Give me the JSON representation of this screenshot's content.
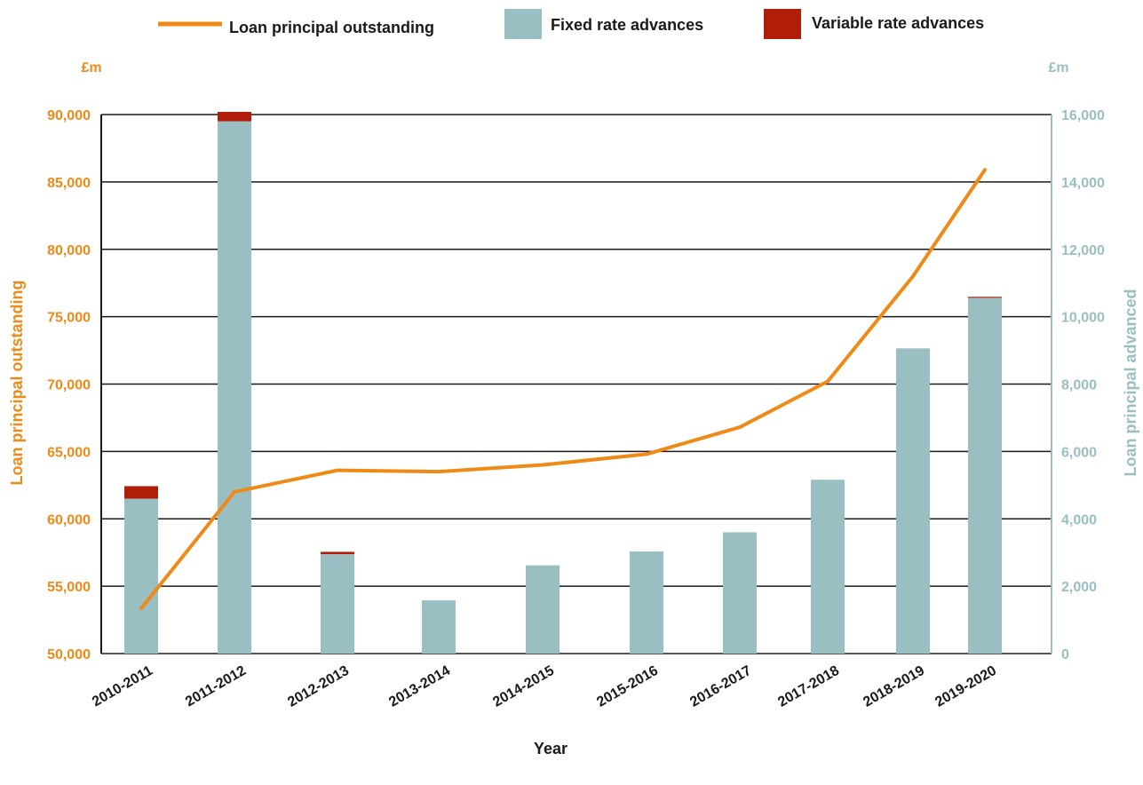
{
  "chart_data": {
    "type": "bar",
    "categories": [
      "2010-2011",
      "2011-2012",
      "2012-2013",
      "2013-2014",
      "2014-2015",
      "2015-2016",
      "2016-2017",
      "2017-2018",
      "2018-2019",
      "2019-2020"
    ],
    "series": [
      {
        "name": "Fixed rate advances",
        "type": "bar",
        "axis": "right",
        "stack": "advances",
        "color": "#99bfc2",
        "values": [
          4600,
          15800,
          2950,
          1580,
          2620,
          3030,
          3600,
          5160,
          9060,
          10560
        ]
      },
      {
        "name": "Variable rate advances",
        "type": "bar",
        "axis": "right",
        "stack": "advances",
        "color": "#b01e0a",
        "values": [
          370,
          280,
          70,
          0,
          0,
          0,
          0,
          0,
          0,
          30
        ]
      },
      {
        "name": "Loan principal outstanding",
        "type": "line",
        "axis": "left",
        "color": "#ef8a17",
        "values": [
          53350,
          62000,
          63600,
          63500,
          64000,
          64800,
          66800,
          70200,
          78000,
          85900
        ]
      }
    ],
    "left_axis": {
      "label": "Loan principal outstanding",
      "unit": "£m",
      "ylim": [
        50000,
        90000
      ],
      "ticks": [
        "50,000",
        "55,000",
        "60,000",
        "65,000",
        "70,000",
        "75,000",
        "80,000",
        "85,000",
        "90,000"
      ]
    },
    "right_axis": {
      "label": "Loan principal advanced",
      "unit": "£m",
      "ylim": [
        0,
        16000
      ],
      "ticks": [
        "0",
        "2,000",
        "4,000",
        "6,000",
        "8,000",
        "10,000",
        "12,000",
        "14,000",
        "16,000"
      ]
    },
    "xlabel": "Year",
    "legend_position": "top-center",
    "grid": true
  }
}
